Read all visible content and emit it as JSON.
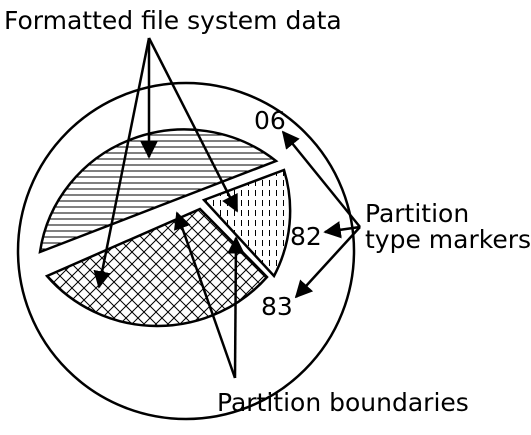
{
  "labels": {
    "top": "Formatted file system data",
    "markers_line1": "Partition",
    "markers_line2": "type markers",
    "bottom": "Partition boundaries"
  },
  "markers": [
    "06",
    "82",
    "83"
  ]
}
